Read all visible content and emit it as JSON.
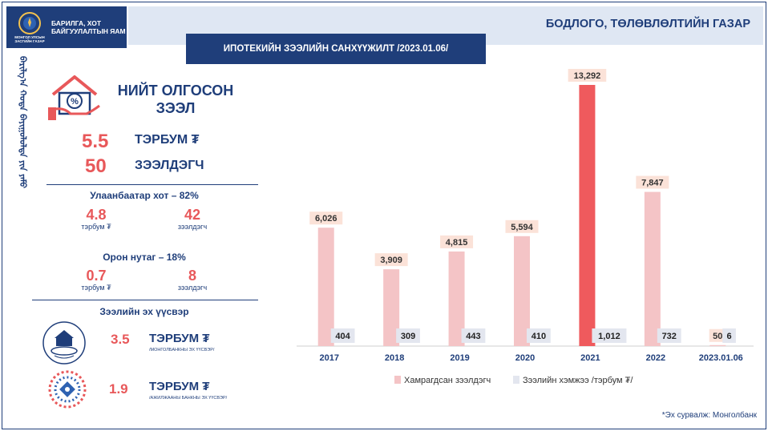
{
  "header": {
    "ministry_emblem_text": "МОНГОЛ УЛСЫН ЗАСГИЙН ГАЗАР",
    "ministry_name_line1": "БАРИЛГА, ХОТ",
    "ministry_name_line2": "БАЙГУУЛАЛТЫН ЯАМ",
    "department": "БОДЛОГО, ТӨЛӨВЛӨЛТИЙН ГАЗАР",
    "vertical_script": "ᠪᠠᠷᠢᠯᠭ᠎ᠠ ᠬᠣᠲᠠ ᠪᠠᠶᠢᠭᠤᠯᠤᠯᠲᠠ ᠶᠢᠨ ᠶᠠᠮᠤ"
  },
  "summary": {
    "title_line1": "НИЙТ ОЛГОСОН",
    "title_line2": "ЗЭЭЛ",
    "total_amount": "5.5",
    "total_amount_unit": "ТЭРБУМ ₮",
    "total_borrowers": "50",
    "total_borrowers_unit": "ЗЭЭЛДЭГЧ"
  },
  "ulaanbaatar": {
    "title": "Улаанбаатар хот – 82%",
    "amount": "4.8",
    "amount_unit": "тэрбум ₮",
    "borrowers": "42",
    "borrowers_unit": "зээлдэгч"
  },
  "rural": {
    "title": "Орон нутаг – 18%",
    "amount": "0.7",
    "amount_unit": "тэрбум ₮",
    "borrowers": "8",
    "borrowers_unit": "зээлдэгч"
  },
  "sources": {
    "title": "Зээлийн эх үүсвэр",
    "items": [
      {
        "value": "3.5",
        "unit": "ТЭРБУМ ₮",
        "sub": "/МОНГОЛБАНКНЫ ЭХ ҮҮСВЭР/",
        "logo": "mongolbank-logo"
      },
      {
        "value": "1.9",
        "unit": "ТЭРБУМ ₮",
        "sub": "/АЖИЛЖААНЫ БАНКНЫ ЭХ ҮҮСВЭР/",
        "logo": "commercial-bank-logo"
      }
    ]
  },
  "chart_data": {
    "type": "bar",
    "title": "ИПОТЕКИЙН ЗЭЭЛИЙН САНХҮҮЖИЛТ /2023.01.06/",
    "categories": [
      "2017",
      "2018",
      "2019",
      "2020",
      "2021",
      "2022",
      "2023.01.06"
    ],
    "series": [
      {
        "name": "Хамрагдсан зээлдэгч",
        "values": [
          6026,
          3909,
          4815,
          5594,
          13292,
          7847,
          50
        ],
        "labels": [
          "6,026",
          "3,909",
          "4,815",
          "5,594",
          "13,292",
          "7,847",
          "50"
        ],
        "color": "#f4c4c6"
      },
      {
        "name": "Зээлийн хэмжээ /тэрбум ₮/",
        "values": [
          404,
          309,
          443,
          410,
          1012,
          732,
          6
        ],
        "labels": [
          "404",
          "309",
          "443",
          "410",
          "1,012",
          "732",
          "6"
        ],
        "color": "#e3e6ef"
      }
    ],
    "highlight_color": "#ef5a5d",
    "highlight_index": 4,
    "legend_position": "bottom",
    "grid": false
  },
  "footnote": "*Эх сурвалж: Монголбанк"
}
